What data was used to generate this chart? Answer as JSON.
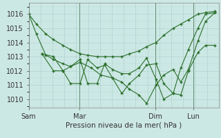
{
  "xlabel": "Pression niveau de la mer( hPa )",
  "bg_color": "#cce8e4",
  "grid_color": "#aacccc",
  "line_color": "#2a6e2a",
  "vline_color": "#5a8a6a",
  "ylim": [
    1009.4,
    1016.8
  ],
  "yticks": [
    1010,
    1011,
    1012,
    1013,
    1014,
    1015,
    1016
  ],
  "xtick_labels": [
    "Sam",
    "Mar",
    "Dim",
    "Lun"
  ],
  "xtick_positions": [
    0.0,
    0.267,
    0.667,
    0.867
  ],
  "vline_positions": [
    0.0,
    0.267,
    0.667,
    0.867
  ],
  "xlim": [
    0.0,
    1.0
  ],
  "series": [
    {
      "x": [
        0.0,
        0.04,
        0.09,
        0.13,
        0.18,
        0.22,
        0.27,
        0.31,
        0.36,
        0.4,
        0.44,
        0.49,
        0.53,
        0.58,
        0.62,
        0.67,
        0.71,
        0.76,
        0.8,
        0.84,
        0.89,
        0.93,
        0.98
      ],
      "y": [
        1016.0,
        1015.3,
        1014.6,
        1014.2,
        1013.8,
        1013.5,
        1013.2,
        1013.1,
        1013.0,
        1013.0,
        1013.0,
        1013.0,
        1013.2,
        1013.4,
        1013.7,
        1014.0,
        1014.5,
        1015.0,
        1015.3,
        1015.6,
        1016.0,
        1016.1,
        1016.2
      ]
    },
    {
      "x": [
        0.0,
        0.04,
        0.09,
        0.13,
        0.18,
        0.22,
        0.27,
        0.33,
        0.38,
        0.44,
        0.49,
        0.53,
        0.58,
        0.62,
        0.67,
        0.71,
        0.76,
        0.8,
        0.84,
        0.89,
        0.93,
        0.98
      ],
      "y": [
        1016.0,
        1014.6,
        1013.1,
        1012.8,
        1012.5,
        1012.3,
        1012.6,
        1012.2,
        1011.7,
        1011.5,
        1011.2,
        1010.7,
        1010.3,
        1009.7,
        1011.0,
        1011.7,
        1012.1,
        1011.2,
        1012.1,
        1014.1,
        1015.5,
        1016.1
      ]
    },
    {
      "x": [
        0.07,
        0.13,
        0.18,
        0.22,
        0.27,
        0.31,
        0.36,
        0.4,
        0.44,
        0.49,
        0.53,
        0.58,
        0.62,
        0.67,
        0.71,
        0.76,
        0.8,
        0.84,
        0.89,
        0.93,
        0.98
      ],
      "y": [
        1013.2,
        1013.0,
        1012.0,
        1012.3,
        1012.8,
        1011.1,
        1011.1,
        1012.5,
        1012.1,
        1011.8,
        1011.8,
        1012.2,
        1012.9,
        1011.4,
        1010.0,
        1010.4,
        1012.2,
        1013.5,
        1015.0,
        1016.0,
        1016.1
      ]
    },
    {
      "x": [
        0.07,
        0.13,
        0.18,
        0.22,
        0.27,
        0.31,
        0.36,
        0.4,
        0.44,
        0.49,
        0.53,
        0.58,
        0.62,
        0.67,
        0.71,
        0.76,
        0.8,
        0.84,
        0.89,
        0.93,
        0.98
      ],
      "y": [
        1013.2,
        1012.0,
        1012.0,
        1011.1,
        1011.1,
        1012.8,
        1012.2,
        1012.4,
        1011.5,
        1010.4,
        1011.1,
        1011.7,
        1012.4,
        1012.5,
        1011.1,
        1010.4,
        1010.3,
        1012.0,
        1013.3,
        1013.8,
        1013.8
      ]
    }
  ]
}
